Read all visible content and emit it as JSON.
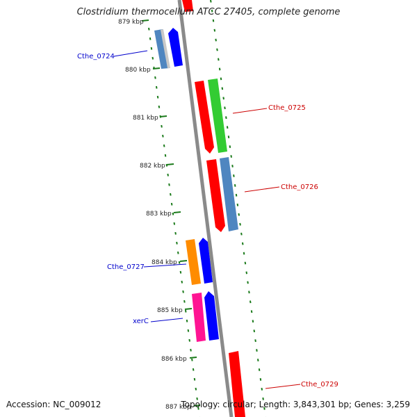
{
  "title": "Clostridium thermocellum ATCC 27405, complete genome",
  "footer": {
    "accession": "Accession: NC_009012",
    "summary": "Topology: circular; Length: 3,843,301 bp; Genes: 3,259"
  },
  "kbp_labels": [
    "879 kbp",
    "880 kbp",
    "881 kbp",
    "882 kbp",
    "883 kbp",
    "884 kbp",
    "885 kbp",
    "886 kbp",
    "887 kbp"
  ],
  "gene_labels": [
    {
      "text": "Cthe_0724",
      "color": "#0000cc"
    },
    {
      "text": "Cthe_0725",
      "color": "#cc0000"
    },
    {
      "text": "Cthe_0726",
      "color": "#cc0000"
    },
    {
      "text": "Cthe_0727",
      "color": "#0000cc"
    },
    {
      "text": "xerC",
      "color": "#0000cc"
    },
    {
      "text": "Cthe_0729",
      "color": "#cc0000"
    }
  ],
  "colors": {
    "backbone": "#8a8a8a",
    "tick": "#1a7a1a",
    "red": "#ff0000",
    "green": "#33cc33",
    "steelblue": "#4f86c0",
    "blue": "#0000ff",
    "orange": "#ff8c00",
    "pink": "#ff1493"
  }
}
